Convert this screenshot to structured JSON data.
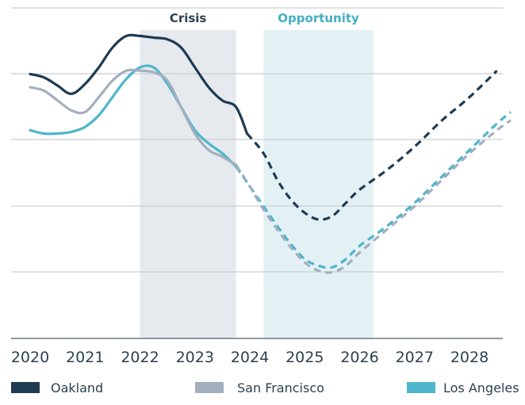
{
  "chart_data": {
    "type": "line",
    "title": "",
    "xlabel": "",
    "ylabel": "",
    "xlim": [
      2020,
      2028.85
    ],
    "ylim": [
      0,
      100
    ],
    "grid": true,
    "legend_position": "bottom",
    "x_ticks": [
      "2020",
      "2021",
      "2022",
      "2023",
      "2024",
      "2025",
      "2026",
      "2027",
      "2028"
    ],
    "bands": [
      {
        "label": "Crisis",
        "start": 2022.0,
        "end": 2023.75,
        "color": "#e6eaee",
        "label_color": "#2c4152"
      },
      {
        "label": "Opportunity",
        "start": 2024.25,
        "end": 2026.25,
        "color": "#e3f1f5",
        "label_color": "#43aec4"
      }
    ],
    "series": [
      {
        "name": "Oakland",
        "color": "#1f3b53",
        "width": 3.2,
        "actual": [
          [
            2020.0,
            80
          ],
          [
            2020.25,
            79
          ],
          [
            2020.5,
            76.5
          ],
          [
            2020.75,
            74
          ],
          [
            2021.0,
            77
          ],
          [
            2021.25,
            82
          ],
          [
            2021.5,
            88
          ],
          [
            2021.75,
            91.5
          ],
          [
            2022.0,
            91.5
          ],
          [
            2022.25,
            91
          ],
          [
            2022.5,
            90.5
          ],
          [
            2022.75,
            88
          ],
          [
            2023.0,
            82
          ],
          [
            2023.25,
            76
          ],
          [
            2023.5,
            72
          ],
          [
            2023.75,
            70
          ],
          [
            2023.95,
            62
          ]
        ],
        "forecast": [
          [
            2023.95,
            62
          ],
          [
            2024.25,
            56
          ],
          [
            2024.5,
            48
          ],
          [
            2024.75,
            42
          ],
          [
            2025.0,
            38
          ],
          [
            2025.25,
            36
          ],
          [
            2025.5,
            37
          ],
          [
            2025.75,
            41
          ],
          [
            2026.0,
            45
          ],
          [
            2026.5,
            51
          ],
          [
            2027.0,
            58
          ],
          [
            2027.5,
            66
          ],
          [
            2028.0,
            73
          ],
          [
            2028.5,
            81
          ]
        ]
      },
      {
        "name": "San Francisco",
        "color": "#a3afbf",
        "width": 3.2,
        "actual": [
          [
            2020.0,
            76
          ],
          [
            2020.25,
            75
          ],
          [
            2020.5,
            72
          ],
          [
            2020.75,
            69
          ],
          [
            2021.0,
            68.5
          ],
          [
            2021.25,
            73
          ],
          [
            2021.5,
            78
          ],
          [
            2021.75,
            81
          ],
          [
            2022.0,
            81
          ],
          [
            2022.25,
            80.5
          ],
          [
            2022.5,
            78
          ],
          [
            2022.75,
            70
          ],
          [
            2023.0,
            62
          ],
          [
            2023.25,
            57
          ],
          [
            2023.5,
            55
          ],
          [
            2023.75,
            52.5
          ]
        ],
        "forecast": [
          [
            2023.75,
            52.5
          ],
          [
            2024.0,
            46
          ],
          [
            2024.25,
            39
          ],
          [
            2024.5,
            33
          ],
          [
            2024.75,
            27.5
          ],
          [
            2025.0,
            23
          ],
          [
            2025.25,
            20.5
          ],
          [
            2025.5,
            20
          ],
          [
            2025.75,
            22
          ],
          [
            2026.0,
            26
          ],
          [
            2026.5,
            33
          ],
          [
            2027.0,
            40
          ],
          [
            2027.5,
            48
          ],
          [
            2028.0,
            56
          ],
          [
            2028.5,
            63
          ],
          [
            2028.75,
            66
          ]
        ]
      },
      {
        "name": "Los Angeles",
        "color": "#4db6ca",
        "width": 3.2,
        "actual": [
          [
            2020.0,
            63
          ],
          [
            2020.25,
            62
          ],
          [
            2020.5,
            62
          ],
          [
            2020.75,
            62.5
          ],
          [
            2021.0,
            64
          ],
          [
            2021.25,
            67.5
          ],
          [
            2021.5,
            73
          ],
          [
            2021.75,
            78.5
          ],
          [
            2022.0,
            82
          ],
          [
            2022.25,
            82
          ],
          [
            2022.5,
            77
          ],
          [
            2022.75,
            70
          ],
          [
            2023.0,
            63
          ],
          [
            2023.25,
            59
          ],
          [
            2023.5,
            56
          ],
          [
            2023.75,
            52
          ]
        ],
        "forecast": [
          [
            2023.75,
            52
          ],
          [
            2024.0,
            46
          ],
          [
            2024.25,
            40
          ],
          [
            2024.5,
            34
          ],
          [
            2024.75,
            28.5
          ],
          [
            2025.0,
            24
          ],
          [
            2025.25,
            22
          ],
          [
            2025.5,
            21.5
          ],
          [
            2025.75,
            24
          ],
          [
            2026.0,
            28
          ],
          [
            2026.5,
            34
          ],
          [
            2027.0,
            41
          ],
          [
            2027.5,
            49
          ],
          [
            2028.0,
            57
          ],
          [
            2028.5,
            65
          ],
          [
            2028.75,
            68.5
          ]
        ]
      }
    ]
  }
}
